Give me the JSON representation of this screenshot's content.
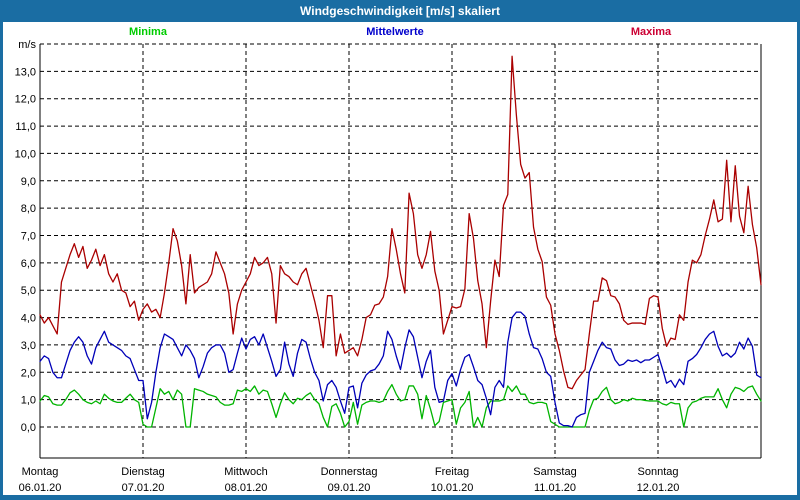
{
  "window": {
    "title": "Windgeschwindigkeit [m/s] skaliert"
  },
  "colors": {
    "titlebar": "#1a6da3",
    "window_border": "#1a6da3",
    "grid": "#000000",
    "axis_frame": "#000000"
  },
  "chart_data": {
    "type": "line",
    "title": "Windgeschwindigkeit [m/s] skaliert",
    "y_unit": "m/s",
    "y_ticks": [
      "0,0",
      "1,0",
      "2,0",
      "3,0",
      "4,0",
      "5,0",
      "6,0",
      "7,0",
      "8,0",
      "9,0",
      "10,0",
      "11,0",
      "12,0",
      "13,0"
    ],
    "ylim": [
      -1.15,
      14
    ],
    "grid": "dashed",
    "legend_position": "top",
    "x_days": [
      {
        "name": "Montag",
        "date": "06.01.20"
      },
      {
        "name": "Dienstag",
        "date": "07.01.20"
      },
      {
        "name": "Mittwoch",
        "date": "08.01.20"
      },
      {
        "name": "Donnerstag",
        "date": "09.01.20"
      },
      {
        "name": "Freitag",
        "date": "10.01.20"
      },
      {
        "name": "Samstag",
        "date": "11.01.20"
      },
      {
        "name": "Sonntag",
        "date": "12.01.20"
      }
    ],
    "hours_per_day": 24,
    "series": [
      {
        "name": "Minima",
        "color": "#00b400",
        "label_color": "#00cc00",
        "values": [
          0.95,
          1.15,
          1.1,
          0.85,
          0.8,
          0.8,
          1.0,
          1.25,
          1.35,
          1.2,
          1.0,
          0.9,
          0.85,
          0.95,
          0.85,
          1.2,
          1.05,
          0.95,
          0.9,
          0.9,
          1.05,
          1.2,
          1.0,
          0.9,
          0.1,
          0.0,
          0.0,
          0.7,
          1.4,
          1.2,
          1.3,
          1.0,
          1.35,
          1.2,
          0.0,
          0.0,
          1.4,
          1.35,
          1.3,
          1.2,
          1.15,
          1.1,
          0.9,
          0.8,
          0.8,
          0.85,
          1.35,
          1.3,
          1.4,
          1.3,
          1.5,
          1.2,
          1.35,
          1.3,
          0.85,
          0.35,
          0.85,
          1.25,
          1.0,
          0.85,
          1.05,
          1.0,
          1.15,
          1.25,
          1.0,
          0.85,
          0.35,
          0.0,
          0.75,
          0.85,
          0.5,
          0.0,
          0.2,
          0.9,
          0.1,
          0.8,
          0.9,
          0.95,
          0.95,
          0.9,
          0.95,
          1.3,
          1.55,
          1.2,
          0.95,
          1.0,
          1.5,
          1.5,
          1.2,
          0.3,
          1.15,
          0.65,
          0.05,
          0.2,
          0.9,
          0.95,
          1.0,
          0.1,
          0.7,
          0.9,
          1.3,
          0.0,
          0.35,
          0.0,
          0.7,
          0.95,
          0.95,
          0.95,
          1.0,
          1.5,
          1.3,
          1.5,
          1.2,
          1.2,
          0.9,
          0.85,
          0.9,
          0.9,
          0.85,
          0.2,
          0.1,
          0.0,
          0.0,
          0.0,
          0.0,
          0.0,
          0.0,
          0.0,
          0.6,
          1.0,
          1.05,
          1.3,
          1.45,
          1.0,
          0.85,
          0.9,
          1.0,
          0.95,
          1.05,
          1.0,
          1.0,
          0.97,
          0.95,
          0.95,
          0.95,
          0.85,
          0.8,
          0.9,
          0.85,
          0.85,
          0.0,
          0.7,
          0.9,
          0.95,
          1.05,
          1.1,
          1.1,
          1.1,
          1.4,
          1.0,
          0.7,
          1.2,
          1.45,
          1.4,
          1.3,
          1.45,
          1.5,
          1.2,
          0.95
        ]
      },
      {
        "name": "Mittelwerte",
        "color": "#0000b8",
        "label_color": "#0000cc",
        "values": [
          2.4,
          2.6,
          2.5,
          2.0,
          1.8,
          1.8,
          2.3,
          2.8,
          3.1,
          3.3,
          3.1,
          2.6,
          2.3,
          2.9,
          3.2,
          3.5,
          3.1,
          3.0,
          2.9,
          2.8,
          2.6,
          2.5,
          2.1,
          1.7,
          1.7,
          0.3,
          0.9,
          2.0,
          2.9,
          3.4,
          3.3,
          3.2,
          2.9,
          2.6,
          3.0,
          2.8,
          2.5,
          1.8,
          2.2,
          2.7,
          2.9,
          3.0,
          3.0,
          2.7,
          2.0,
          2.1,
          2.7,
          3.25,
          2.85,
          3.2,
          3.3,
          3.0,
          3.4,
          2.9,
          2.4,
          1.85,
          2.1,
          3.1,
          2.3,
          1.85,
          2.7,
          3.2,
          3.1,
          2.5,
          2.0,
          1.7,
          0.95,
          1.55,
          1.7,
          1.45,
          0.95,
          0.5,
          1.45,
          1.5,
          0.7,
          1.6,
          1.9,
          2.05,
          2.1,
          2.3,
          2.6,
          3.5,
          3.2,
          2.6,
          2.1,
          2.9,
          3.55,
          3.3,
          2.55,
          1.8,
          2.4,
          2.8,
          1.45,
          0.9,
          0.95,
          1.7,
          1.95,
          1.5,
          2.1,
          2.55,
          2.65,
          2.2,
          1.7,
          1.55,
          1.05,
          0.45,
          1.45,
          1.7,
          1.45,
          3.1,
          4.0,
          4.2,
          4.2,
          4.05,
          3.4,
          2.9,
          2.85,
          2.5,
          2.0,
          1.85,
          0.9,
          0.15,
          0.05,
          0.05,
          0.0,
          0.35,
          0.45,
          0.5,
          2.0,
          2.4,
          2.8,
          3.1,
          2.9,
          2.85,
          2.45,
          2.25,
          2.3,
          2.45,
          2.4,
          2.45,
          2.35,
          2.45,
          2.45,
          2.55,
          2.65,
          2.15,
          1.6,
          1.7,
          1.45,
          1.75,
          1.55,
          2.4,
          2.5,
          2.65,
          2.9,
          3.2,
          3.4,
          3.5,
          2.95,
          2.6,
          2.7,
          2.55,
          2.7,
          3.1,
          2.85,
          3.25,
          2.95,
          1.9,
          1.8
        ]
      },
      {
        "name": "Maxima",
        "color": "#aa0000",
        "label_color": "#cc0033",
        "values": [
          4.1,
          3.8,
          4.0,
          3.7,
          3.4,
          5.3,
          5.8,
          6.3,
          6.7,
          6.2,
          6.6,
          5.8,
          6.1,
          6.5,
          5.9,
          6.3,
          5.6,
          5.3,
          5.6,
          5.0,
          4.9,
          4.4,
          4.6,
          3.9,
          4.3,
          4.5,
          4.2,
          4.3,
          4.0,
          4.9,
          6.0,
          7.25,
          6.8,
          5.9,
          4.5,
          6.3,
          4.9,
          5.1,
          5.2,
          5.3,
          5.6,
          6.4,
          6.0,
          5.6,
          4.9,
          3.4,
          4.5,
          5.0,
          5.3,
          5.6,
          6.2,
          5.9,
          6.0,
          6.2,
          5.6,
          3.8,
          5.9,
          5.6,
          5.5,
          5.3,
          5.2,
          5.6,
          5.8,
          5.2,
          4.6,
          3.9,
          2.9,
          4.8,
          4.8,
          2.6,
          3.4,
          2.7,
          2.8,
          2.9,
          2.6,
          3.2,
          4.0,
          4.1,
          4.45,
          4.5,
          4.75,
          5.5,
          7.25,
          6.5,
          5.6,
          4.9,
          8.55,
          7.8,
          6.3,
          5.8,
          6.3,
          7.15,
          5.7,
          5.0,
          3.4,
          3.9,
          4.4,
          4.35,
          4.4,
          5.05,
          7.8,
          6.9,
          5.35,
          4.5,
          2.9,
          4.6,
          6.1,
          5.5,
          8.1,
          8.5,
          13.55,
          11.4,
          9.6,
          9.1,
          9.3,
          7.3,
          6.5,
          6.05,
          4.75,
          4.45,
          3.4,
          2.8,
          2.05,
          1.45,
          1.4,
          1.7,
          1.9,
          2.1,
          3.4,
          4.6,
          4.6,
          5.45,
          5.35,
          4.8,
          4.75,
          4.5,
          3.9,
          3.75,
          3.8,
          3.8,
          3.8,
          3.75,
          4.7,
          4.8,
          4.75,
          3.6,
          2.95,
          3.25,
          3.2,
          4.1,
          3.9,
          5.3,
          6.1,
          6.0,
          6.3,
          7.0,
          7.6,
          8.3,
          7.5,
          7.6,
          9.75,
          7.5,
          9.55,
          7.7,
          7.1,
          8.8,
          7.4,
          6.55,
          5.2
        ]
      }
    ]
  }
}
